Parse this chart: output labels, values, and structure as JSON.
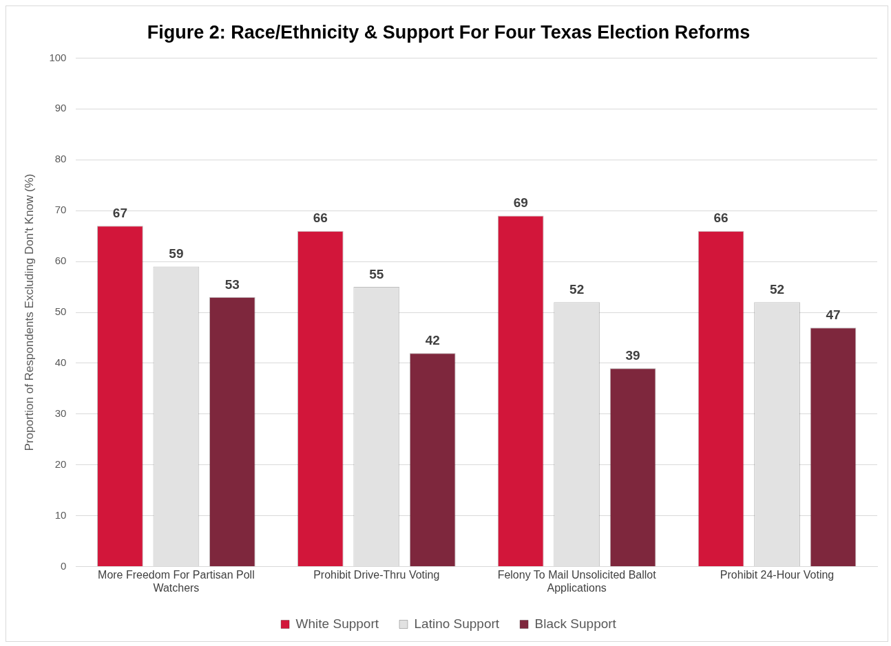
{
  "chart_data": {
    "type": "bar",
    "title": "Figure 2: Race/Ethnicity & Support For Four Texas Election Reforms",
    "ylabel": "Proportion of Respondents Excluding Don't Know (%)",
    "categories": [
      "More Freedom For Partisan Poll Watchers",
      "Prohibit Drive-Thru Voting",
      "Felony To Mail Unsolicited Ballot Applications",
      "Prohibit 24-Hour Voting"
    ],
    "series": [
      {
        "name": "White Support",
        "color": "#d2163a",
        "values": [
          67,
          66,
          69,
          66
        ]
      },
      {
        "name": "Latino Support",
        "color": "#e2e2e2",
        "values": [
          59,
          55,
          52,
          52
        ]
      },
      {
        "name": "Black Support",
        "color": "#7e273d",
        "values": [
          53,
          42,
          39,
          47
        ]
      }
    ],
    "ylim": [
      0,
      100
    ],
    "yticks": [
      0,
      10,
      20,
      30,
      40,
      50,
      60,
      70,
      80,
      90,
      100
    ],
    "grid": "y",
    "legend": "bottom",
    "data_labels": true
  }
}
